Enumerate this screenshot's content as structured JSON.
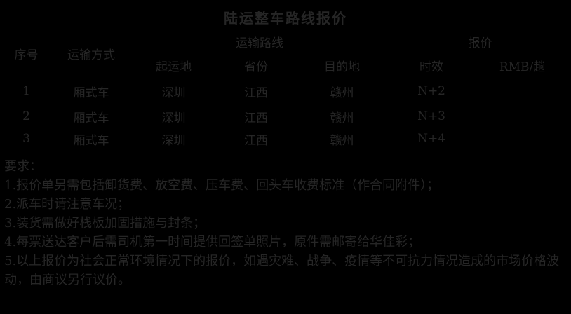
{
  "title": "陆运整车路线报价",
  "table": {
    "group_headers": {
      "route": "运输路线",
      "quote": "报价"
    },
    "columns": {
      "no": "序号",
      "mode": "运输方式",
      "origin": "起运地",
      "province": "省份",
      "destination": "目的地",
      "leadtime": "时效",
      "price": "RMB/趟"
    },
    "rows": [
      {
        "no": "1",
        "mode": "厢式车",
        "origin": "深圳",
        "province": "江西",
        "destination": "赣州",
        "leadtime": "N+2",
        "price": ""
      },
      {
        "no": "2",
        "mode": "厢式车",
        "origin": "深圳",
        "province": "江西",
        "destination": "赣州",
        "leadtime": "N+3",
        "price": ""
      },
      {
        "no": "3",
        "mode": "厢式车",
        "origin": "深圳",
        "province": "江西",
        "destination": "赣州",
        "leadtime": "N+4",
        "price": ""
      }
    ]
  },
  "notes": {
    "heading": "要求：",
    "items": [
      "1.报价单另需包括卸货费、放空费、压车费、回头车收费标准（作合同附件）；",
      "2.派车时请注意车况；",
      "3.装货需做好栈板加固措施与封条；",
      "4.每票送达客户后需司机第一时间提供回签单照片，原件需邮寄给华佳彩；",
      "5.以上报价为社会正常环境情况下的报价，如遇灾难、战争、疫情等不可抗力情况造成的市场价格波动，由商议另行议价。"
    ]
  },
  "colors": {
    "background": "#000000",
    "text": "#262626"
  }
}
